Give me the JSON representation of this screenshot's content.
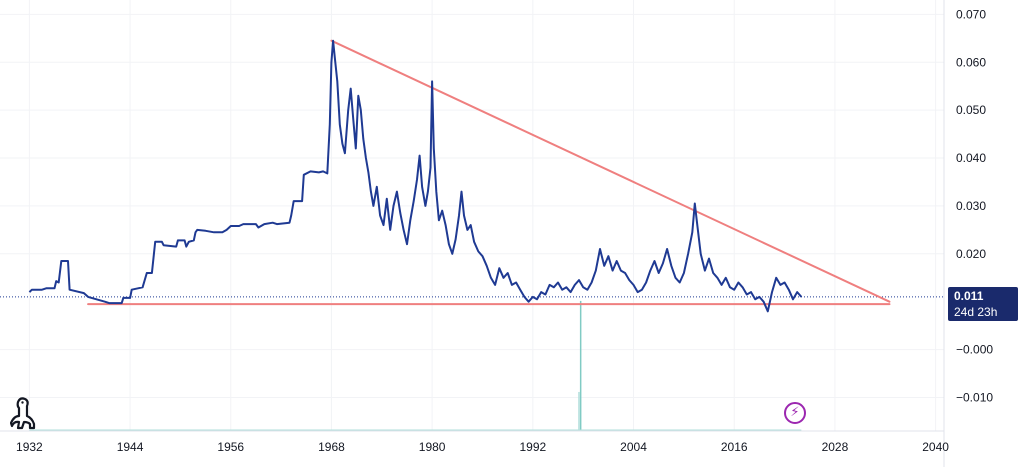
{
  "chart_data": {
    "type": "line",
    "title": "",
    "xlabel": "",
    "ylabel": "",
    "xlim": [
      1928.5,
      2041
    ],
    "ylim": [
      -0.017,
      0.073
    ],
    "x_ticks": [
      "1932",
      "1944",
      "1956",
      "1968",
      "1980",
      "1992",
      "2004",
      "2016",
      "2028",
      "2040"
    ],
    "y_ticks": [
      "0.070",
      "0.060",
      "0.050",
      "0.040",
      "0.030",
      "0.020",
      "0.011",
      "−0.000",
      "−0.010"
    ],
    "current_value": "0.011",
    "countdown": "24d 23h",
    "series": [
      {
        "color": "#1f3a93",
        "points": [
          [
            1932.0,
            0.012
          ],
          [
            1932.3,
            0.0125
          ],
          [
            1933.5,
            0.0125
          ],
          [
            1934.0,
            0.0128
          ],
          [
            1935.0,
            0.0128
          ],
          [
            1935.2,
            0.0143
          ],
          [
            1935.5,
            0.014
          ],
          [
            1935.8,
            0.0185
          ],
          [
            1936.6,
            0.0185
          ],
          [
            1936.8,
            0.0125
          ],
          [
            1938.5,
            0.0118
          ],
          [
            1939.0,
            0.011
          ],
          [
            1941.0,
            0.01
          ],
          [
            1941.5,
            0.0097
          ],
          [
            1943.0,
            0.0097
          ],
          [
            1943.2,
            0.0108
          ],
          [
            1944.0,
            0.0108
          ],
          [
            1944.2,
            0.0125
          ],
          [
            1945.5,
            0.013
          ],
          [
            1946.0,
            0.016
          ],
          [
            1946.6,
            0.016
          ],
          [
            1947.0,
            0.0225
          ],
          [
            1947.8,
            0.0225
          ],
          [
            1948.0,
            0.0218
          ],
          [
            1949.5,
            0.0215
          ],
          [
            1949.7,
            0.0228
          ],
          [
            1950.5,
            0.0228
          ],
          [
            1950.7,
            0.0215
          ],
          [
            1951.0,
            0.0225
          ],
          [
            1951.6,
            0.0228
          ],
          [
            1951.8,
            0.0245
          ],
          [
            1952.0,
            0.025
          ],
          [
            1953.0,
            0.0248
          ],
          [
            1954.0,
            0.0245
          ],
          [
            1955.0,
            0.0245
          ],
          [
            1955.5,
            0.025
          ],
          [
            1956.0,
            0.0258
          ],
          [
            1957.0,
            0.0258
          ],
          [
            1957.5,
            0.0262
          ],
          [
            1959.0,
            0.0262
          ],
          [
            1959.3,
            0.0255
          ],
          [
            1960.0,
            0.0262
          ],
          [
            1961.0,
            0.0265
          ],
          [
            1961.5,
            0.0262
          ],
          [
            1963.0,
            0.0265
          ],
          [
            1963.2,
            0.028
          ],
          [
            1963.5,
            0.031
          ],
          [
            1964.5,
            0.031
          ],
          [
            1964.7,
            0.0365
          ],
          [
            1965.5,
            0.0372
          ],
          [
            1966.5,
            0.037
          ],
          [
            1967.0,
            0.0372
          ],
          [
            1967.5,
            0.0368
          ],
          [
            1967.8,
            0.047
          ],
          [
            1968.0,
            0.06
          ],
          [
            1968.2,
            0.0645
          ],
          [
            1968.4,
            0.061
          ],
          [
            1968.7,
            0.056
          ],
          [
            1969.0,
            0.047
          ],
          [
            1969.3,
            0.043
          ],
          [
            1969.6,
            0.041
          ],
          [
            1970.0,
            0.05
          ],
          [
            1970.3,
            0.0545
          ],
          [
            1970.6,
            0.048
          ],
          [
            1970.9,
            0.042
          ],
          [
            1971.2,
            0.053
          ],
          [
            1971.5,
            0.05
          ],
          [
            1971.8,
            0.044
          ],
          [
            1972.1,
            0.04
          ],
          [
            1972.4,
            0.037
          ],
          [
            1972.7,
            0.033
          ],
          [
            1973.0,
            0.03
          ],
          [
            1973.4,
            0.034
          ],
          [
            1973.8,
            0.028
          ],
          [
            1974.2,
            0.026
          ],
          [
            1974.6,
            0.0315
          ],
          [
            1975.0,
            0.025
          ],
          [
            1975.4,
            0.03
          ],
          [
            1975.8,
            0.033
          ],
          [
            1976.2,
            0.0285
          ],
          [
            1976.6,
            0.025
          ],
          [
            1977.0,
            0.022
          ],
          [
            1977.4,
            0.027
          ],
          [
            1977.8,
            0.031
          ],
          [
            1978.2,
            0.0355
          ],
          [
            1978.5,
            0.0405
          ],
          [
            1978.8,
            0.034
          ],
          [
            1979.2,
            0.03
          ],
          [
            1979.5,
            0.033
          ],
          [
            1979.8,
            0.038
          ],
          [
            1980.0,
            0.056
          ],
          [
            1980.2,
            0.042
          ],
          [
            1980.5,
            0.033
          ],
          [
            1980.8,
            0.027
          ],
          [
            1981.2,
            0.029
          ],
          [
            1981.6,
            0.026
          ],
          [
            1982.0,
            0.022
          ],
          [
            1982.4,
            0.02
          ],
          [
            1982.8,
            0.023
          ],
          [
            1983.2,
            0.028
          ],
          [
            1983.5,
            0.033
          ],
          [
            1983.8,
            0.028
          ],
          [
            1984.2,
            0.025
          ],
          [
            1984.6,
            0.026
          ],
          [
            1985.0,
            0.0225
          ],
          [
            1985.5,
            0.0205
          ],
          [
            1986.0,
            0.0195
          ],
          [
            1986.5,
            0.0175
          ],
          [
            1987.0,
            0.015
          ],
          [
            1987.5,
            0.0135
          ],
          [
            1988.0,
            0.017
          ],
          [
            1988.5,
            0.015
          ],
          [
            1989.0,
            0.016
          ],
          [
            1989.5,
            0.0135
          ],
          [
            1990.0,
            0.014
          ],
          [
            1990.5,
            0.0125
          ],
          [
            1991.0,
            0.011
          ],
          [
            1991.5,
            0.01
          ],
          [
            1992.0,
            0.011
          ],
          [
            1992.5,
            0.0105
          ],
          [
            1993.0,
            0.012
          ],
          [
            1993.5,
            0.0115
          ],
          [
            1994.0,
            0.0135
          ],
          [
            1994.5,
            0.013
          ],
          [
            1995.0,
            0.014
          ],
          [
            1995.5,
            0.0125
          ],
          [
            1996.0,
            0.013
          ],
          [
            1996.5,
            0.012
          ],
          [
            1997.0,
            0.0135
          ],
          [
            1997.5,
            0.0145
          ],
          [
            1998.0,
            0.013
          ],
          [
            1998.5,
            0.0125
          ],
          [
            1999.0,
            0.014
          ],
          [
            1999.5,
            0.0165
          ],
          [
            2000.0,
            0.021
          ],
          [
            2000.5,
            0.0175
          ],
          [
            2001.0,
            0.0195
          ],
          [
            2001.5,
            0.0165
          ],
          [
            2002.0,
            0.0185
          ],
          [
            2002.5,
            0.0165
          ],
          [
            2003.0,
            0.016
          ],
          [
            2003.5,
            0.0145
          ],
          [
            2004.0,
            0.0135
          ],
          [
            2004.5,
            0.012
          ],
          [
            2005.0,
            0.0125
          ],
          [
            2005.5,
            0.014
          ],
          [
            2006.0,
            0.0165
          ],
          [
            2006.5,
            0.0185
          ],
          [
            2007.0,
            0.016
          ],
          [
            2007.5,
            0.018
          ],
          [
            2008.0,
            0.021
          ],
          [
            2008.5,
            0.0175
          ],
          [
            2009.0,
            0.015
          ],
          [
            2009.5,
            0.014
          ],
          [
            2010.0,
            0.016
          ],
          [
            2010.5,
            0.02
          ],
          [
            2011.0,
            0.0245
          ],
          [
            2011.3,
            0.0305
          ],
          [
            2011.6,
            0.026
          ],
          [
            2012.0,
            0.02
          ],
          [
            2012.5,
            0.0165
          ],
          [
            2013.0,
            0.019
          ],
          [
            2013.5,
            0.016
          ],
          [
            2014.0,
            0.015
          ],
          [
            2014.5,
            0.0135
          ],
          [
            2015.0,
            0.015
          ],
          [
            2015.5,
            0.013
          ],
          [
            2016.0,
            0.0125
          ],
          [
            2016.5,
            0.014
          ],
          [
            2017.0,
            0.013
          ],
          [
            2017.5,
            0.0115
          ],
          [
            2018.0,
            0.012
          ],
          [
            2018.5,
            0.0105
          ],
          [
            2019.0,
            0.011
          ],
          [
            2019.5,
            0.01
          ],
          [
            2020.0,
            0.008
          ],
          [
            2020.5,
            0.012
          ],
          [
            2021.0,
            0.015
          ],
          [
            2021.5,
            0.0135
          ],
          [
            2022.0,
            0.014
          ],
          [
            2022.5,
            0.0125
          ],
          [
            2023.0,
            0.0105
          ],
          [
            2023.5,
            0.012
          ],
          [
            2024.0,
            0.011
          ]
        ]
      }
    ],
    "trendlines": [
      {
        "color": "#ef7f7f",
        "points": [
          [
            1968.0,
            0.0645
          ],
          [
            2034.5,
            0.01
          ]
        ]
      },
      {
        "color": "#ef7f7f",
        "points": [
          [
            1939.0,
            0.0095
          ],
          [
            2034.5,
            0.0095
          ]
        ]
      }
    ],
    "reference_line": {
      "color": "#1f3a93",
      "value": 0.011
    },
    "volume_bars": [
      {
        "x": 1997.5,
        "value": 0.3,
        "color": "#b2dfdb"
      },
      {
        "x": 1997.7,
        "value": 1.0,
        "color": "#80cbc4"
      }
    ]
  },
  "icons": {
    "logo": "dinosaur-logo-icon",
    "bolt": "lightning-bolt-icon",
    "bolt_glyph": "⚡"
  },
  "colors": {
    "price_line": "#1f3a93",
    "trendline": "#ef7f7f",
    "price_tag_bg": "#1a2a6c",
    "bolt": "#9c27b0"
  }
}
